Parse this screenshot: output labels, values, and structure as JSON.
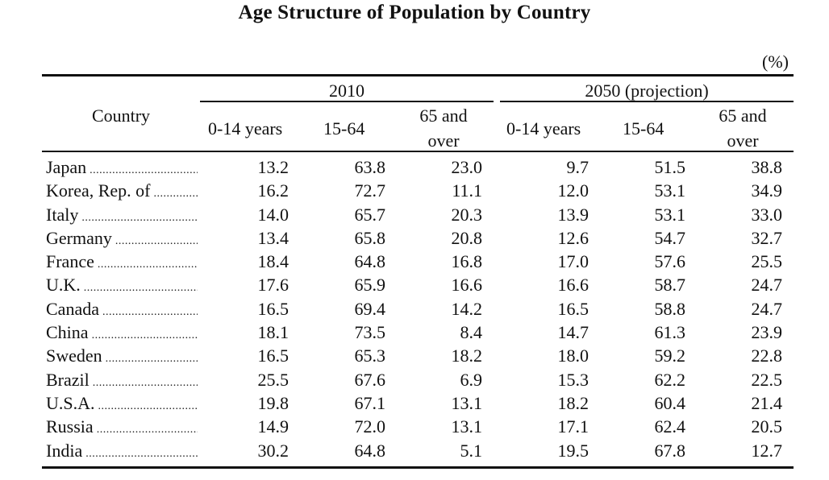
{
  "title": "Age Structure of Population by Country",
  "unit": "(%)",
  "header": {
    "country": "Country",
    "group_2010": "2010",
    "group_2050": "2050 (projection)",
    "col_0_14": "0-14 years",
    "col_15_64": "15-64",
    "col_65_line1": "65 and",
    "col_65_line2": "over"
  },
  "rows": [
    {
      "country": "Japan",
      "y2010": [
        "13.2",
        "63.8",
        "23.0"
      ],
      "y2050": [
        "9.7",
        "51.5",
        "38.8"
      ]
    },
    {
      "country": "Korea, Rep. of",
      "y2010": [
        "16.2",
        "72.7",
        "11.1"
      ],
      "y2050": [
        "12.0",
        "53.1",
        "34.9"
      ]
    },
    {
      "country": "Italy",
      "y2010": [
        "14.0",
        "65.7",
        "20.3"
      ],
      "y2050": [
        "13.9",
        "53.1",
        "33.0"
      ]
    },
    {
      "country": "Germany",
      "y2010": [
        "13.4",
        "65.8",
        "20.8"
      ],
      "y2050": [
        "12.6",
        "54.7",
        "32.7"
      ]
    },
    {
      "country": "France",
      "y2010": [
        "18.4",
        "64.8",
        "16.8"
      ],
      "y2050": [
        "17.0",
        "57.6",
        "25.5"
      ]
    },
    {
      "country": "U.K.",
      "y2010": [
        "17.6",
        "65.9",
        "16.6"
      ],
      "y2050": [
        "16.6",
        "58.7",
        "24.7"
      ]
    },
    {
      "country": "Canada",
      "y2010": [
        "16.5",
        "69.4",
        "14.2"
      ],
      "y2050": [
        "16.5",
        "58.8",
        "24.7"
      ]
    },
    {
      "country": "China",
      "y2010": [
        "18.1",
        "73.5",
        "8.4"
      ],
      "y2050": [
        "14.7",
        "61.3",
        "23.9"
      ]
    },
    {
      "country": "Sweden",
      "y2010": [
        "16.5",
        "65.3",
        "18.2"
      ],
      "y2050": [
        "18.0",
        "59.2",
        "22.8"
      ]
    },
    {
      "country": "Brazil",
      "y2010": [
        "25.5",
        "67.6",
        "6.9"
      ],
      "y2050": [
        "15.3",
        "62.2",
        "22.5"
      ]
    },
    {
      "country": "U.S.A.",
      "y2010": [
        "19.8",
        "67.1",
        "13.1"
      ],
      "y2050": [
        "18.2",
        "60.4",
        "21.4"
      ]
    },
    {
      "country": "Russia",
      "y2010": [
        "14.9",
        "72.0",
        "13.1"
      ],
      "y2050": [
        "17.1",
        "62.4",
        "20.5"
      ]
    },
    {
      "country": "India",
      "y2010": [
        "30.2",
        "64.8",
        "5.1"
      ],
      "y2050": [
        "19.5",
        "67.8",
        "12.7"
      ]
    }
  ]
}
